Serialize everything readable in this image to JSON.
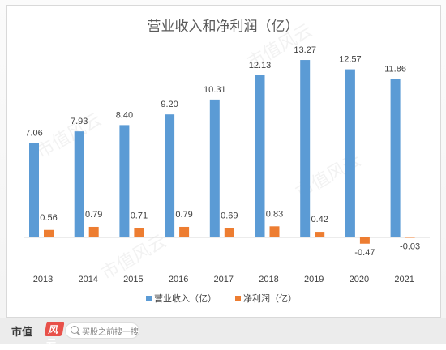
{
  "chart_data": {
    "type": "bar",
    "title": "营业收入和净利润（亿）",
    "categories": [
      "2013",
      "2014",
      "2015",
      "2016",
      "2017",
      "2018",
      "2019",
      "2020",
      "2021"
    ],
    "series": [
      {
        "name": "营业收入（亿）",
        "color": "#5b9bd5",
        "values": [
          7.06,
          7.93,
          8.4,
          9.2,
          10.31,
          12.13,
          13.27,
          12.57,
          11.86
        ]
      },
      {
        "name": "净利润（亿）",
        "color": "#ed7d31",
        "values": [
          0.56,
          0.79,
          0.71,
          0.79,
          0.69,
          0.83,
          0.42,
          -0.47,
          -0.03
        ]
      }
    ],
    "legend": "bottom",
    "grid": false
  },
  "footer": {
    "logo": "市值",
    "logo_mark": "风云",
    "search_placeholder": "买股之前搜一搜",
    "search_icon": "search-icon"
  },
  "watermark": "市值风云"
}
